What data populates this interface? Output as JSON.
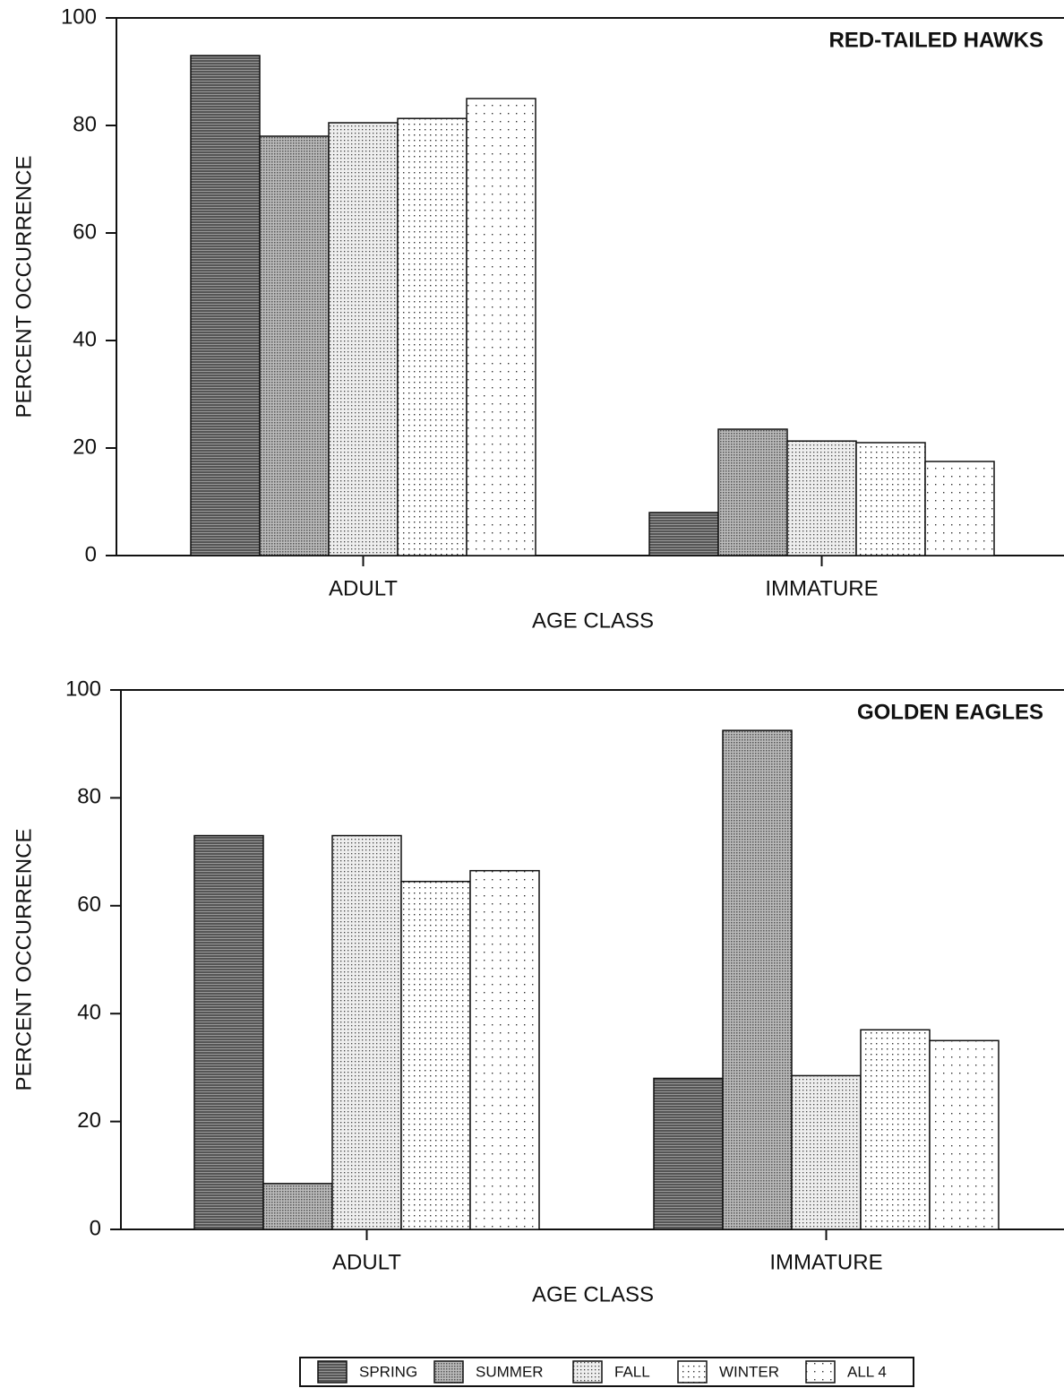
{
  "chart_data": [
    {
      "type": "bar",
      "title": "RED-TAILED HAWKS",
      "xlabel": "AGE CLASS",
      "ylabel": "PERCENT OCCURRENCE",
      "categories": [
        "ADULT",
        "IMMATURE"
      ],
      "ylim": [
        0,
        100
      ],
      "yticks": [
        0,
        20,
        40,
        60,
        80,
        100
      ],
      "series": [
        {
          "name": "SPRING",
          "color": "#6e6e6e",
          "values": [
            93,
            8
          ]
        },
        {
          "name": "SUMMER",
          "color": "#9a9a9a",
          "values": [
            78,
            23.5
          ]
        },
        {
          "name": "FALL",
          "color": "#c4c4c4",
          "values": [
            80.5,
            21.3
          ]
        },
        {
          "name": "WINTER",
          "color": "#dcdcdc",
          "values": [
            81.3,
            21
          ]
        },
        {
          "name": "ALL 4",
          "color": "#eeeeee",
          "values": [
            85,
            17.5
          ]
        }
      ]
    },
    {
      "type": "bar",
      "title": "GOLDEN EAGLES",
      "xlabel": "AGE CLASS",
      "ylabel": "PERCENT OCCURRENCE",
      "categories": [
        "ADULT",
        "IMMATURE"
      ],
      "ylim": [
        0,
        100
      ],
      "yticks": [
        0,
        20,
        40,
        60,
        80,
        100
      ],
      "series": [
        {
          "color": "#6e6e6e",
          "values": [
            73,
            28
          ]
        },
        {
          "color": "#9a9a9a",
          "values": [
            8.5,
            92.5
          ]
        },
        {
          "color": "#c4c4c4",
          "values": [
            73,
            28.5
          ]
        },
        {
          "color": "#dcdcdc",
          "values": [
            64.5,
            37
          ]
        },
        {
          "color": "#eeeeee",
          "values": [
            66.5,
            35
          ]
        }
      ]
    }
  ]
}
